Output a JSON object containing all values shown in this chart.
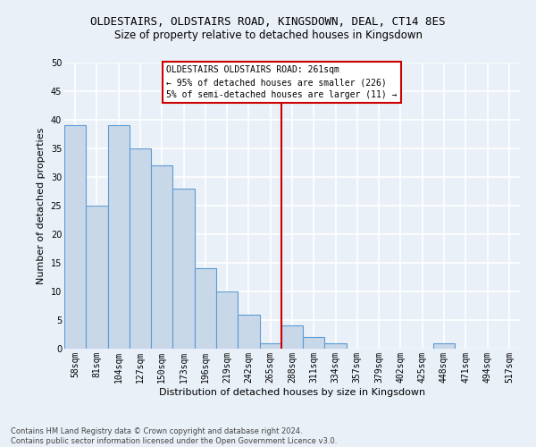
{
  "title": "OLDESTAIRS, OLDSTAIRS ROAD, KINGSDOWN, DEAL, CT14 8ES",
  "subtitle": "Size of property relative to detached houses in Kingsdown",
  "xlabel": "Distribution of detached houses by size in Kingsdown",
  "ylabel": "Number of detached properties",
  "bin_labels": [
    "58sqm",
    "81sqm",
    "104sqm",
    "127sqm",
    "150sqm",
    "173sqm",
    "196sqm",
    "219sqm",
    "242sqm",
    "265sqm",
    "288sqm",
    "311sqm",
    "334sqm",
    "357sqm",
    "379sqm",
    "402sqm",
    "425sqm",
    "448sqm",
    "471sqm",
    "494sqm",
    "517sqm"
  ],
  "bar_values": [
    39,
    25,
    39,
    35,
    32,
    28,
    14,
    10,
    6,
    1,
    4,
    2,
    1,
    0,
    0,
    0,
    0,
    1,
    0,
    0,
    0
  ],
  "bar_color": "#c8d8e8",
  "bar_edge_color": "#5b9bd5",
  "vline_x": 9.5,
  "vline_color": "#cc0000",
  "annotation_box_text": "OLDESTAIRS OLDSTAIRS ROAD: 261sqm\n← 95% of detached houses are smaller (226)\n5% of semi-detached houses are larger (11) →",
  "annotation_edge_color": "#cc0000",
  "ylim": [
    0,
    50
  ],
  "yticks": [
    0,
    5,
    10,
    15,
    20,
    25,
    30,
    35,
    40,
    45,
    50
  ],
  "footer_text": "Contains HM Land Registry data © Crown copyright and database right 2024.\nContains public sector information licensed under the Open Government Licence v3.0.",
  "background_color": "#eaf0f8",
  "grid_color": "#ffffff",
  "title_fontsize": 9,
  "subtitle_fontsize": 8.5,
  "axis_label_fontsize": 8,
  "tick_fontsize": 7,
  "annotation_fontsize": 7,
  "footer_fontsize": 6
}
